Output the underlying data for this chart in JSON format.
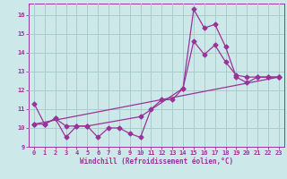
{
  "background_color": "#cce8e8",
  "grid_color": "#aacccc",
  "line_color": "#993399",
  "xlabel": "Windchill (Refroidissement éolien,°C)",
  "ylim": [
    9.0,
    16.6
  ],
  "xlim": [
    -0.5,
    23.5
  ],
  "yticks": [
    9,
    10,
    11,
    12,
    13,
    14,
    15,
    16
  ],
  "xticks": [
    0,
    1,
    2,
    3,
    4,
    5,
    6,
    7,
    8,
    9,
    10,
    11,
    12,
    13,
    14,
    15,
    16,
    17,
    18,
    19,
    20,
    21,
    22,
    23
  ],
  "series1_x": [
    0,
    1,
    2,
    3,
    4,
    5,
    6,
    7,
    8,
    9,
    10,
    11,
    12,
    13,
    14,
    15,
    16,
    17,
    18,
    19,
    20,
    21,
    22,
    23
  ],
  "series1_y": [
    11.3,
    10.2,
    10.5,
    9.5,
    10.1,
    10.1,
    9.5,
    10.0,
    10.0,
    9.7,
    9.5,
    11.0,
    11.5,
    11.5,
    12.1,
    16.3,
    15.3,
    15.5,
    14.3,
    12.7,
    12.4,
    12.7,
    12.7,
    12.7
  ],
  "series2_x": [
    0,
    1,
    2,
    3,
    4,
    5,
    10,
    14,
    15,
    16,
    17,
    18,
    19,
    20,
    21,
    22,
    23
  ],
  "series2_y": [
    10.2,
    10.2,
    10.5,
    10.1,
    10.1,
    10.1,
    10.6,
    12.1,
    14.6,
    13.9,
    14.4,
    13.5,
    12.8,
    12.7,
    12.7,
    12.7,
    12.7
  ],
  "series3_x": [
    0,
    23
  ],
  "series3_y": [
    10.2,
    12.7
  ]
}
